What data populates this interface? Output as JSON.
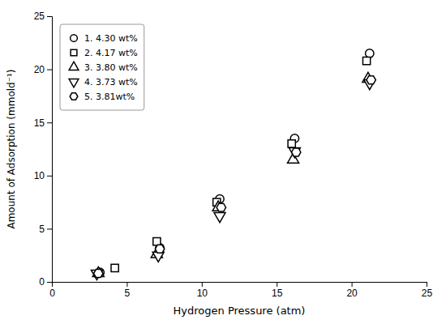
{
  "chart_data": {
    "type": "scatter",
    "x_label": "Hydrogen Pressure (atm)",
    "y_label": "Amount of Adsorption (mmold⁻¹)",
    "series": [
      {
        "name": "1. 4.30 wt%",
        "marker": "circle",
        "x": [
          3.2,
          7.2,
          11.2,
          16.2,
          21.2
        ],
        "values": [
          0.9,
          3.2,
          7.8,
          13.5,
          21.5
        ]
      },
      {
        "name": "2. 4.17 wt%",
        "marker": "square",
        "x": [
          4.2,
          7.0,
          11.0,
          16.0,
          21.0
        ],
        "values": [
          1.3,
          3.8,
          7.5,
          13.0,
          20.8
        ]
      },
      {
        "name": "3. 3.80 wt%",
        "marker": "triangle-up",
        "x": [
          3.1,
          7.0,
          11.1,
          16.1,
          21.1
        ],
        "values": [
          0.8,
          2.6,
          7.0,
          11.5,
          19.1
        ]
      },
      {
        "name": "4. 3.73 wt%",
        "marker": "triangle-down",
        "x": [
          3.0,
          7.1,
          11.2,
          16.2,
          21.2
        ],
        "values": [
          0.8,
          2.5,
          6.2,
          12.3,
          18.7
        ]
      },
      {
        "name": "5. 3.81wt%",
        "marker": "hexagon",
        "x": [
          3.1,
          7.2,
          11.3,
          16.3,
          21.3
        ],
        "values": [
          0.8,
          3.1,
          7.0,
          12.2,
          19.0
        ]
      }
    ],
    "xlim": [
      0,
      25
    ],
    "ylim": [
      0,
      25
    ],
    "xticks": [
      0,
      5,
      10,
      15,
      20,
      25
    ],
    "yticks": [
      0,
      5,
      10,
      15,
      20,
      25
    ],
    "legend": "upper left",
    "color": "black",
    "grid": false
  }
}
